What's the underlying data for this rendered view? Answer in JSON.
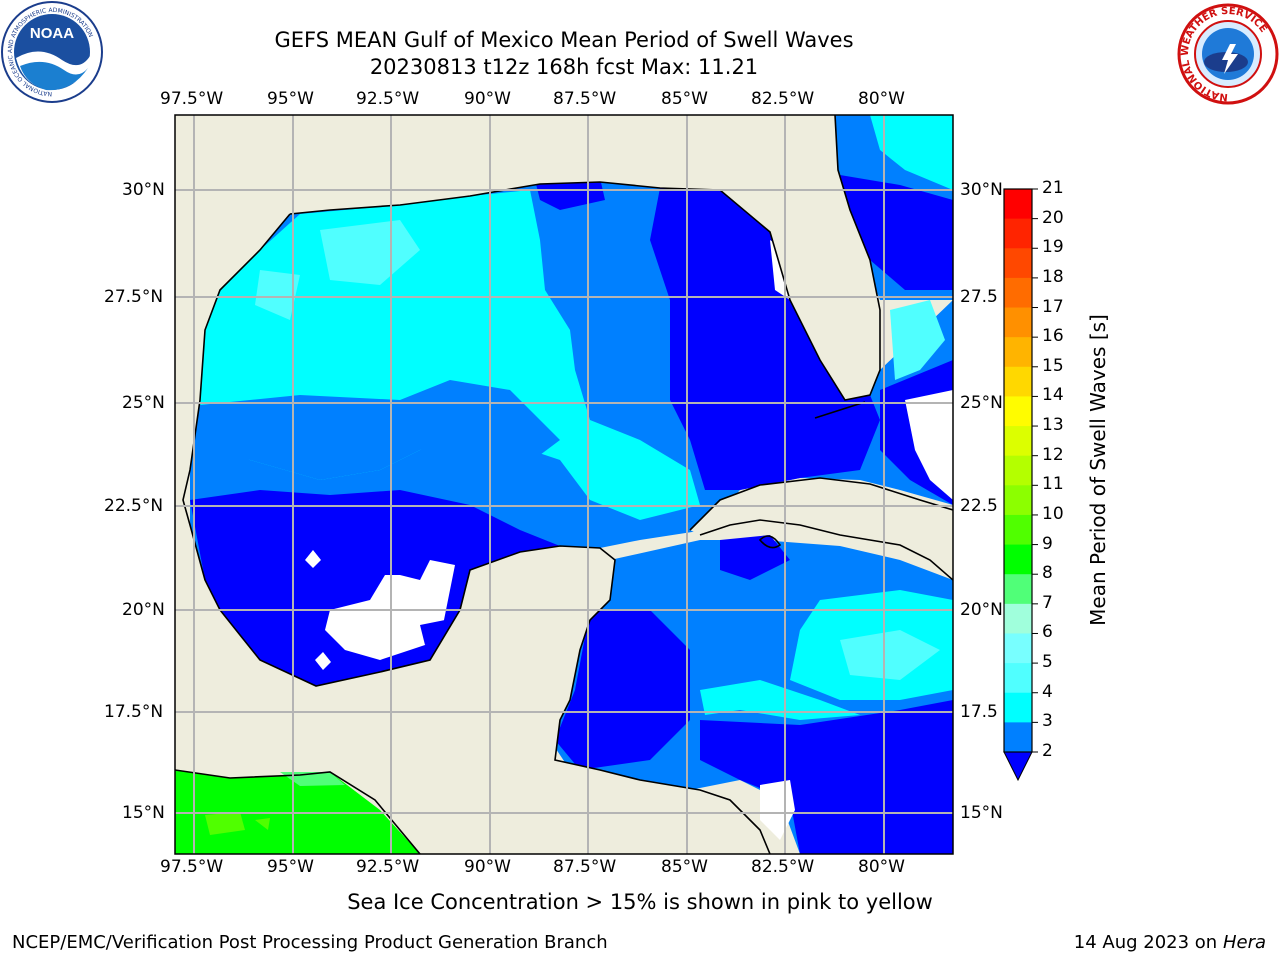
{
  "header": {
    "title": "GEFS MEAN Gulf of Mexico Mean Period of Swell Waves",
    "subtitle": "20230813 t12z 168h fcst   Max: 11.21"
  },
  "logos": {
    "left": {
      "text": "NOAA",
      "ring": "NATIONAL OCEANIC AND ATMOSPHERIC ADMINISTRATION",
      "ring_bottom": "U.S. DEPARTMENT OF COMMERCE"
    },
    "right": {
      "ring": "NATIONAL WEATHER SERVICE"
    }
  },
  "map": {
    "lon_labels": [
      "97.5°W",
      "95°W",
      "92.5°W",
      "90°W",
      "87.5°W",
      "85°W",
      "82.5°W",
      "80°W"
    ],
    "lat_labels_left": [
      "30°N",
      "27.5°N",
      "25°N",
      "22.5°N",
      "20°N",
      "17.5°N",
      "15°N"
    ],
    "lat_labels_right": [
      "30°N",
      "27.5",
      "25°N",
      "22.5",
      "20°N",
      "17.5",
      "15°N"
    ],
    "colors": {
      "land": "#eeeddd",
      "coast": "#000000",
      "grid": "#b4b4b4"
    }
  },
  "colorbar": {
    "label": "Mean Period of Swell Waves [s]",
    "ticks": [
      "21",
      "20",
      "19",
      "18",
      "17",
      "16",
      "15",
      "14",
      "13",
      "12",
      "11",
      "10",
      "9",
      "8",
      "7",
      "6",
      "5",
      "4",
      "3",
      "2"
    ],
    "colors": [
      "#ff0000",
      "#ff2400",
      "#ff4800",
      "#ff6c00",
      "#ff9000",
      "#ffb400",
      "#ffd800",
      "#fffc00",
      "#dcff00",
      "#b4ff00",
      "#8cff00",
      "#50ff00",
      "#00ff00",
      "#50ff78",
      "#a0ffdc",
      "#78ffff",
      "#50ffff",
      "#00ffff",
      "#0080ff"
    ],
    "under_color": "#0000ff"
  },
  "footer": {
    "note": "Sea Ice Concentration > 15% is shown in pink to yellow",
    "org": "NCEP/EMC/Verification Post Processing Product Generation Branch",
    "date": "14 Aug 2023 on",
    "host": "Hera"
  }
}
